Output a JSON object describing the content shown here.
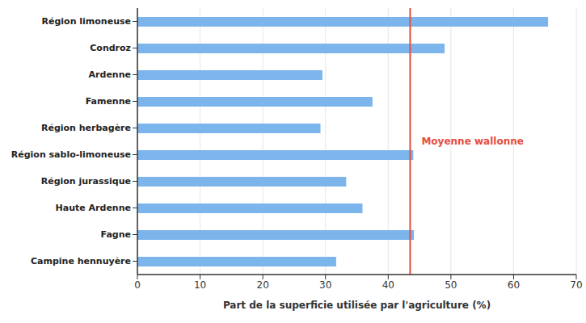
{
  "chart_data": {
    "type": "bar",
    "orientation": "horizontal",
    "categories": [
      "Région limoneuse",
      "Condroz",
      "Ardenne",
      "Famenne",
      "Région herbagère",
      "Région sablo-limoneuse",
      "Région jurassique",
      "Haute Ardenne",
      "Fagne",
      "Campine hennuyère"
    ],
    "values": [
      65.5,
      49,
      29.5,
      37.5,
      29.2,
      44,
      33.3,
      35.9,
      44.1,
      31.7
    ],
    "color": "#7cb5ec",
    "x_label": "Part de la superficie utilisée par l'agriculture (%)",
    "xlim": [
      0,
      70
    ],
    "xticks": [
      0,
      10,
      20,
      30,
      40,
      50,
      60,
      70
    ],
    "grid": true,
    "reference_line": {
      "value": 43.5,
      "label": "Moyenne wallonne",
      "color": "#e74c3c"
    }
  }
}
